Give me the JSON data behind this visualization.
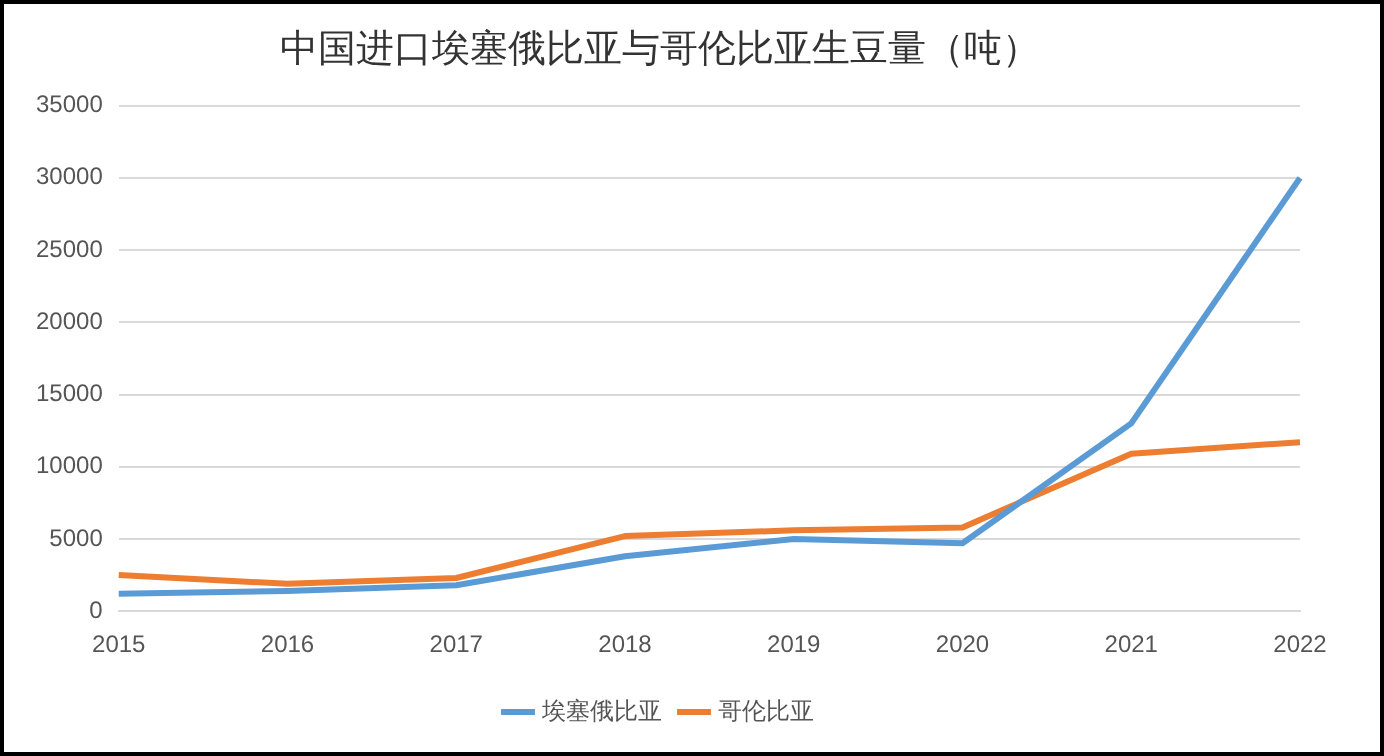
{
  "chart_data": {
    "type": "line",
    "title": "中国进口埃塞俄比亚与哥伦比亚生豆量（吨）",
    "categories": [
      "2015",
      "2016",
      "2017",
      "2018",
      "2019",
      "2020",
      "2021",
      "2022"
    ],
    "series": [
      {
        "name": "埃塞俄比亚",
        "color": "#5b9bd5",
        "values": [
          1200,
          1400,
          1800,
          3800,
          5000,
          4700,
          13000,
          30000
        ]
      },
      {
        "name": "哥伦比亚",
        "color": "#ed7d31",
        "values": [
          2500,
          1900,
          2300,
          5200,
          5600,
          5800,
          10900,
          11700
        ]
      }
    ],
    "ylim": [
      0,
      35000
    ],
    "yticks": [
      0,
      5000,
      10000,
      15000,
      20000,
      25000,
      30000,
      35000
    ],
    "grid": "y",
    "legend": "bottom",
    "marker": "none"
  }
}
